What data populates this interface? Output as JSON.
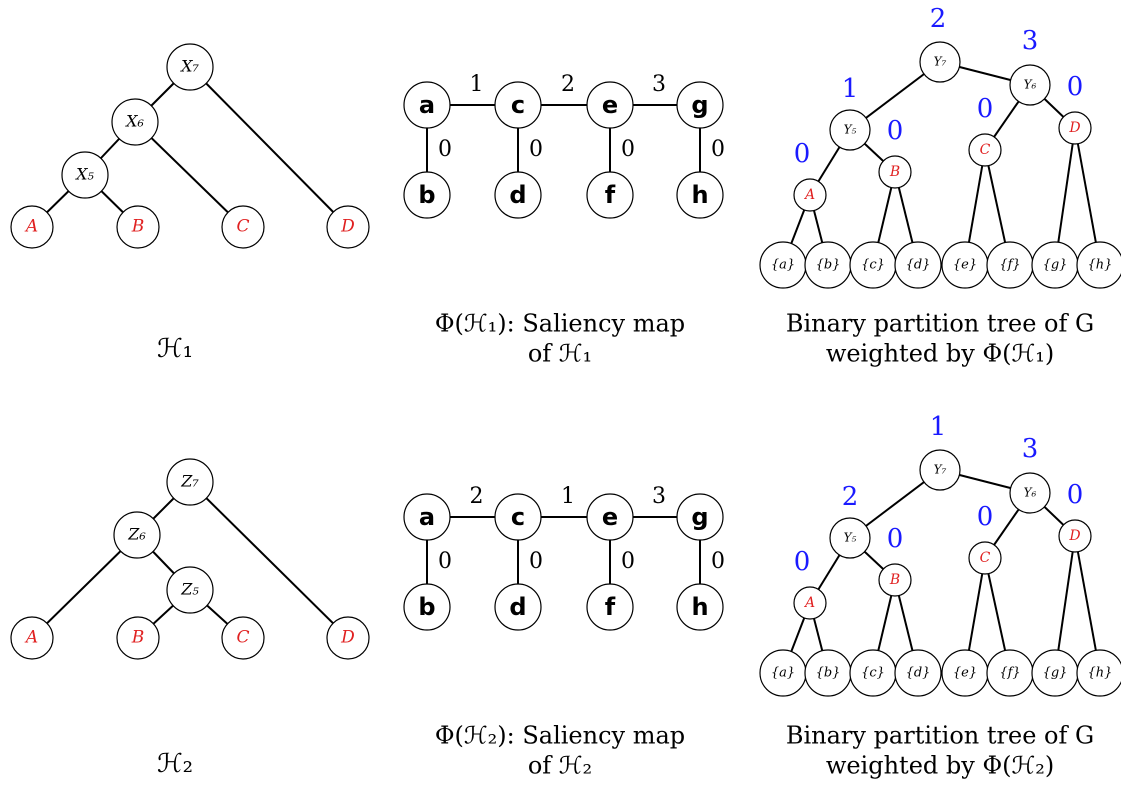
{
  "rows": [
    {
      "hierarchy": {
        "nodes": [
          "X₇",
          "X₆",
          "X₅",
          "A",
          "B",
          "C",
          "D"
        ],
        "caption": "ℋ₁"
      },
      "saliency": {
        "nodes": [
          "a",
          "c",
          "e",
          "g",
          "b",
          "d",
          "f",
          "h"
        ],
        "edge_weights": [
          1,
          2,
          3,
          0,
          0,
          0,
          0
        ],
        "caption": [
          "Φ(ℋ₁): Saliency map",
          "of ℋ₁"
        ]
      },
      "bpt": {
        "nodes": [
          "Y₇",
          "Y₅",
          "Y₆",
          "A",
          "B",
          "C",
          "D",
          "{a}",
          "{b}",
          "{c}",
          "{d}",
          "{e}",
          "{f}",
          "{g}",
          "{h}"
        ],
        "weights": [
          2,
          1,
          3,
          0,
          0,
          0,
          0
        ],
        "caption": [
          "Binary partition tree of G",
          "weighted by Φ(ℋ₁)"
        ]
      }
    },
    {
      "hierarchy": {
        "nodes": [
          "Z₇",
          "Z₆",
          "Z₅",
          "A",
          "B",
          "C",
          "D"
        ],
        "caption": "ℋ₂"
      },
      "saliency": {
        "nodes": [
          "a",
          "c",
          "e",
          "g",
          "b",
          "d",
          "f",
          "h"
        ],
        "edge_weights": [
          2,
          1,
          3,
          0,
          0,
          0,
          0
        ],
        "caption": [
          "Φ(ℋ₂): Saliency map",
          "of ℋ₂"
        ]
      },
      "bpt": {
        "nodes": [
          "Y₇",
          "Y₅",
          "Y₆",
          "A",
          "B",
          "C",
          "D",
          "{a}",
          "{b}",
          "{c}",
          "{d}",
          "{e}",
          "{f}",
          "{g}",
          "{h}"
        ],
        "weights": [
          1,
          2,
          3,
          0,
          0,
          0,
          0
        ],
        "caption": [
          "Binary partition tree of G",
          "weighted by Φ(ℋ₂)"
        ]
      }
    }
  ]
}
